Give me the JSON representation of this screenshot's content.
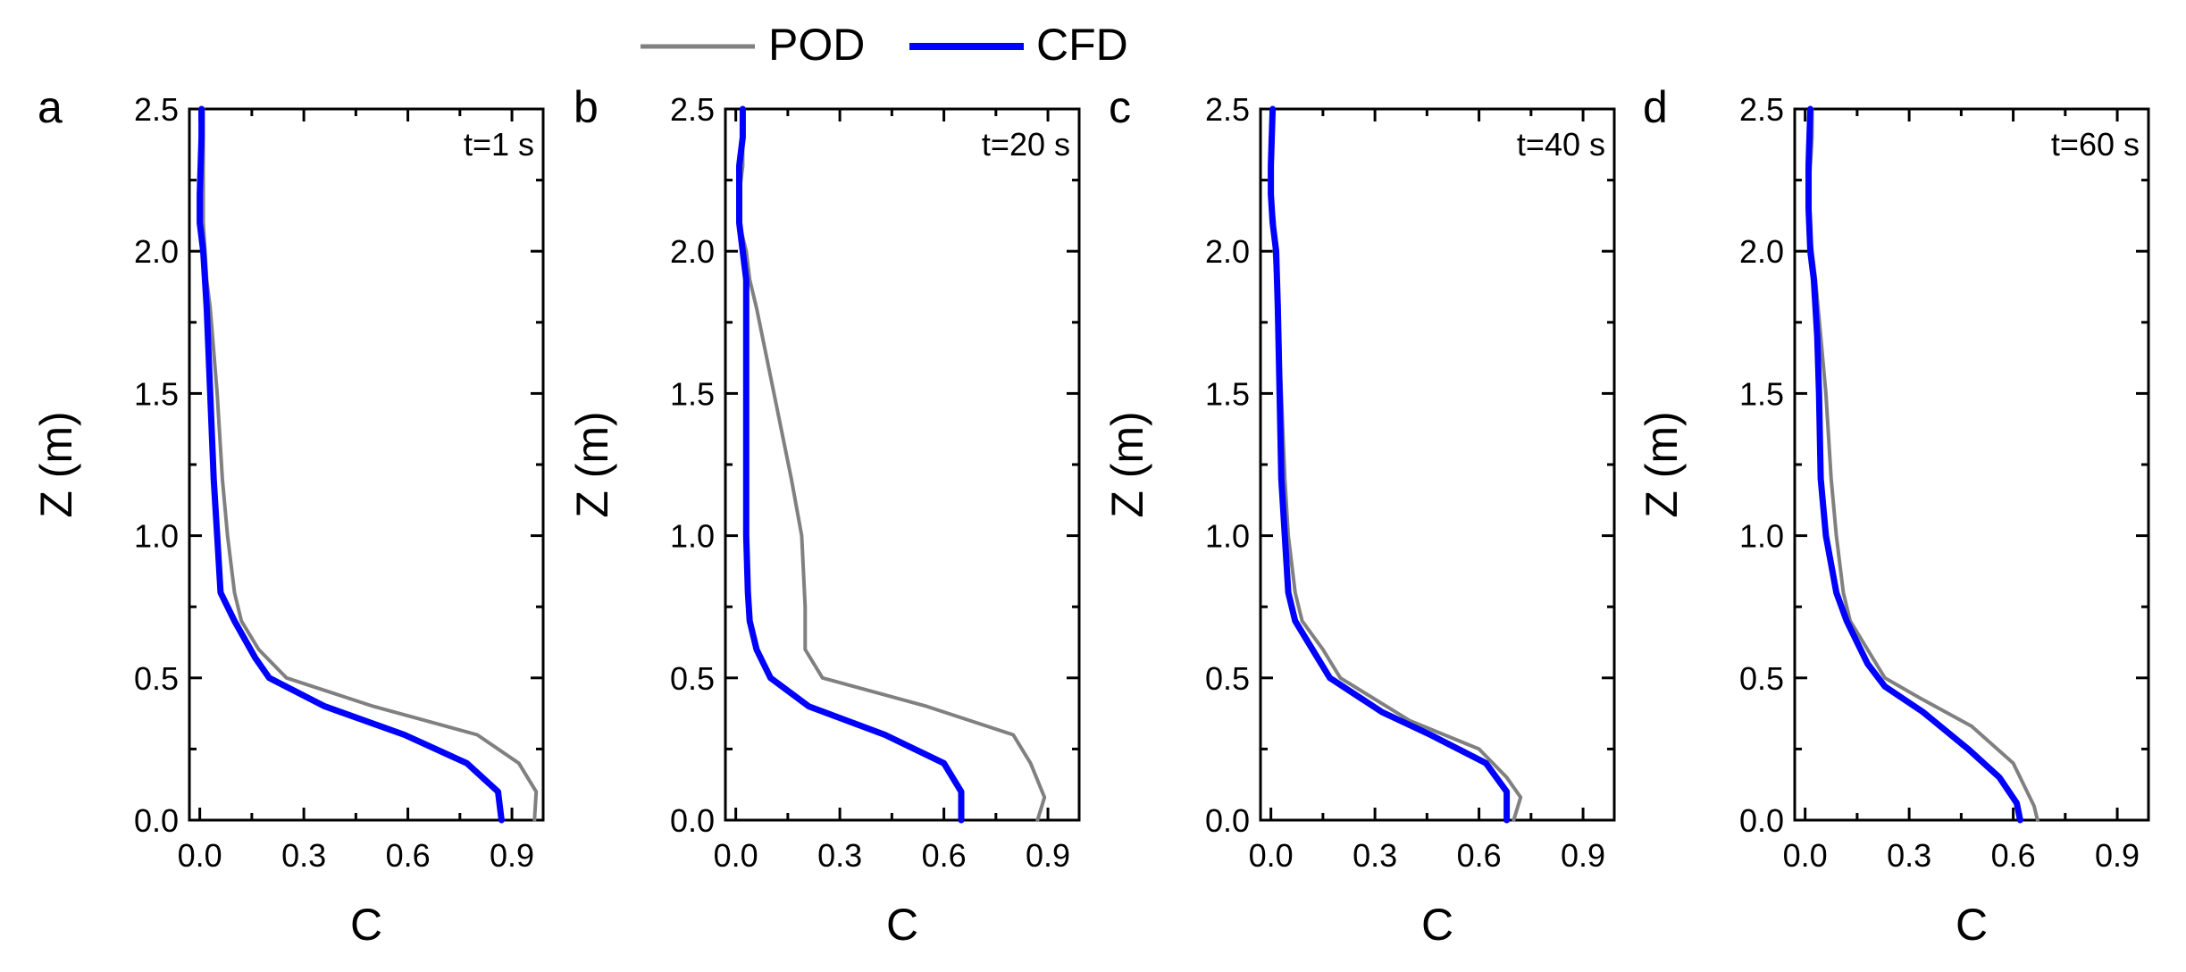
{
  "legend": {
    "items": [
      {
        "label": "POD",
        "color": "#808080"
      },
      {
        "label": "CFD",
        "color": "#0000ff"
      }
    ]
  },
  "chart_data": [
    {
      "type": "line",
      "panel_label": "a",
      "annotation": "t=1 s",
      "xlabel": "C",
      "ylabel": "Z (m)",
      "xlim": [
        -0.03,
        0.99
      ],
      "ylim": [
        0,
        2.5
      ],
      "xticks": [
        "0.0",
        "0.3",
        "0.6",
        "0.9"
      ],
      "yticks": [
        "0.0",
        "0.5",
        "1.0",
        "1.5",
        "2.0",
        "2.5"
      ],
      "series": [
        {
          "name": "POD",
          "color": "#808080",
          "points": [
            [
              0.965,
              0.0
            ],
            [
              0.97,
              0.1
            ],
            [
              0.92,
              0.2
            ],
            [
              0.8,
              0.3
            ],
            [
              0.5,
              0.4
            ],
            [
              0.25,
              0.5
            ],
            [
              0.17,
              0.6
            ],
            [
              0.12,
              0.7
            ],
            [
              0.1,
              0.8
            ],
            [
              0.08,
              1.0
            ],
            [
              0.065,
              1.2
            ],
            [
              0.05,
              1.5
            ],
            [
              0.03,
              1.8
            ],
            [
              0.02,
              1.9
            ],
            [
              0.01,
              2.1
            ],
            [
              0.01,
              2.3
            ],
            [
              0.01,
              2.5
            ]
          ]
        },
        {
          "name": "CFD",
          "color": "#0000ff",
          "points": [
            [
              0.87,
              0.0
            ],
            [
              0.86,
              0.1
            ],
            [
              0.77,
              0.2
            ],
            [
              0.59,
              0.3
            ],
            [
              0.36,
              0.4
            ],
            [
              0.2,
              0.5
            ],
            [
              0.16,
              0.57
            ],
            [
              0.1,
              0.7
            ],
            [
              0.06,
              0.8
            ],
            [
              0.05,
              1.0
            ],
            [
              0.04,
              1.2
            ],
            [
              0.03,
              1.5
            ],
            [
              0.02,
              1.8
            ],
            [
              0.01,
              2.0
            ],
            [
              0.0,
              2.1
            ],
            [
              0.0,
              2.2
            ],
            [
              0.005,
              2.4
            ],
            [
              0.005,
              2.5
            ]
          ]
        }
      ]
    },
    {
      "type": "line",
      "panel_label": "b",
      "annotation": "t=20 s",
      "xlabel": "C",
      "ylabel": "Z (m)",
      "xlim": [
        -0.03,
        0.99
      ],
      "ylim": [
        0,
        2.5
      ],
      "xticks": [
        "0.0",
        "0.3",
        "0.6",
        "0.9"
      ],
      "yticks": [
        "0.0",
        "0.5",
        "1.0",
        "1.5",
        "2.0",
        "2.5"
      ],
      "series": [
        {
          "name": "POD",
          "color": "#808080",
          "points": [
            [
              0.87,
              0.0
            ],
            [
              0.89,
              0.08
            ],
            [
              0.85,
              0.2
            ],
            [
              0.8,
              0.3
            ],
            [
              0.55,
              0.4
            ],
            [
              0.25,
              0.5
            ],
            [
              0.2,
              0.6
            ],
            [
              0.2,
              0.75
            ],
            [
              0.19,
              1.0
            ],
            [
              0.16,
              1.2
            ],
            [
              0.11,
              1.5
            ],
            [
              0.06,
              1.8
            ],
            [
              0.04,
              1.9
            ],
            [
              0.03,
              2.0
            ],
            [
              0.01,
              2.1
            ],
            [
              0.01,
              2.2
            ],
            [
              0.02,
              2.3
            ],
            [
              0.02,
              2.5
            ]
          ]
        },
        {
          "name": "CFD",
          "color": "#0000ff",
          "points": [
            [
              0.65,
              0.0
            ],
            [
              0.65,
              0.1
            ],
            [
              0.6,
              0.2
            ],
            [
              0.43,
              0.3
            ],
            [
              0.21,
              0.4
            ],
            [
              0.1,
              0.5
            ],
            [
              0.06,
              0.6
            ],
            [
              0.04,
              0.7
            ],
            [
              0.035,
              0.8
            ],
            [
              0.03,
              1.0
            ],
            [
              0.03,
              1.5
            ],
            [
              0.03,
              1.8
            ],
            [
              0.03,
              1.9
            ],
            [
              0.02,
              2.0
            ],
            [
              0.01,
              2.1
            ],
            [
              0.01,
              2.2
            ],
            [
              0.01,
              2.3
            ],
            [
              0.02,
              2.4
            ],
            [
              0.02,
              2.5
            ]
          ]
        }
      ]
    },
    {
      "type": "line",
      "panel_label": "c",
      "annotation": "t=40 s",
      "xlabel": "C",
      "ylabel": "Z (m)",
      "xlim": [
        -0.03,
        0.99
      ],
      "ylim": [
        0,
        2.5
      ],
      "xticks": [
        "0.0",
        "0.3",
        "0.6",
        "0.9"
      ],
      "yticks": [
        "0.0",
        "0.5",
        "1.0",
        "1.5",
        "2.0",
        "2.5"
      ],
      "series": [
        {
          "name": "POD",
          "color": "#808080",
          "points": [
            [
              0.7,
              0.0
            ],
            [
              0.72,
              0.08
            ],
            [
              0.68,
              0.15
            ],
            [
              0.6,
              0.25
            ],
            [
              0.4,
              0.35
            ],
            [
              0.2,
              0.5
            ],
            [
              0.15,
              0.6
            ],
            [
              0.09,
              0.7
            ],
            [
              0.07,
              0.8
            ],
            [
              0.05,
              1.0
            ],
            [
              0.04,
              1.2
            ],
            [
              0.03,
              1.5
            ],
            [
              0.02,
              1.8
            ],
            [
              0.01,
              2.0
            ],
            [
              0.01,
              2.1
            ],
            [
              0.0,
              2.2
            ],
            [
              0.0,
              2.3
            ],
            [
              0.005,
              2.5
            ]
          ]
        },
        {
          "name": "CFD",
          "color": "#0000ff",
          "points": [
            [
              0.68,
              0.0
            ],
            [
              0.68,
              0.1
            ],
            [
              0.62,
              0.2
            ],
            [
              0.46,
              0.3
            ],
            [
              0.32,
              0.38
            ],
            [
              0.17,
              0.5
            ],
            [
              0.12,
              0.6
            ],
            [
              0.07,
              0.7
            ],
            [
              0.05,
              0.8
            ],
            [
              0.04,
              1.0
            ],
            [
              0.03,
              1.2
            ],
            [
              0.025,
              1.5
            ],
            [
              0.02,
              1.8
            ],
            [
              0.015,
              2.0
            ],
            [
              0.005,
              2.1
            ],
            [
              0.0,
              2.2
            ],
            [
              0.0,
              2.3
            ],
            [
              0.005,
              2.5
            ]
          ]
        }
      ]
    },
    {
      "type": "line",
      "panel_label": "d",
      "annotation": "t=60 s",
      "xlabel": "C",
      "ylabel": "Z (m)",
      "xlim": [
        -0.03,
        0.99
      ],
      "ylim": [
        0,
        2.5
      ],
      "xticks": [
        "0.0",
        "0.3",
        "0.6",
        "0.9"
      ],
      "yticks": [
        "0.0",
        "0.5",
        "1.0",
        "1.5",
        "2.0",
        "2.5"
      ],
      "series": [
        {
          "name": "POD",
          "color": "#808080",
          "points": [
            [
              0.67,
              0.0
            ],
            [
              0.66,
              0.05
            ],
            [
              0.6,
              0.2
            ],
            [
              0.48,
              0.33
            ],
            [
              0.33,
              0.43
            ],
            [
              0.23,
              0.5
            ],
            [
              0.18,
              0.6
            ],
            [
              0.13,
              0.7
            ],
            [
              0.11,
              0.8
            ],
            [
              0.09,
              1.0
            ],
            [
              0.075,
              1.2
            ],
            [
              0.06,
              1.5
            ],
            [
              0.045,
              1.7
            ],
            [
              0.03,
              1.9
            ],
            [
              0.02,
              2.0
            ],
            [
              0.01,
              2.1
            ],
            [
              0.01,
              2.2
            ],
            [
              0.02,
              2.4
            ],
            [
              0.02,
              2.5
            ]
          ]
        },
        {
          "name": "CFD",
          "color": "#0000ff",
          "points": [
            [
              0.62,
              0.0
            ],
            [
              0.61,
              0.06
            ],
            [
              0.56,
              0.15
            ],
            [
              0.47,
              0.25
            ],
            [
              0.34,
              0.38
            ],
            [
              0.23,
              0.47
            ],
            [
              0.18,
              0.55
            ],
            [
              0.12,
              0.7
            ],
            [
              0.09,
              0.8
            ],
            [
              0.06,
              1.0
            ],
            [
              0.045,
              1.2
            ],
            [
              0.04,
              1.5
            ],
            [
              0.035,
              1.7
            ],
            [
              0.025,
              1.9
            ],
            [
              0.015,
              2.0
            ],
            [
              0.01,
              2.15
            ],
            [
              0.01,
              2.3
            ],
            [
              0.015,
              2.5
            ]
          ]
        }
      ]
    }
  ]
}
